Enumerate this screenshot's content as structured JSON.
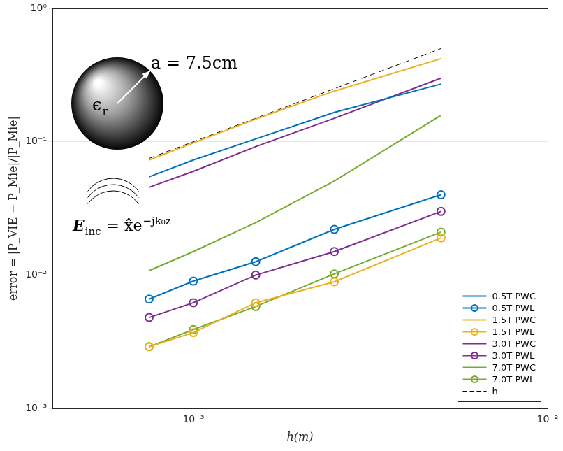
{
  "chart_data": {
    "type": "line",
    "x_label": "h(m)",
    "y_label": "error = |P_VIE − P_Mie|/|P_Mie|",
    "log": true,
    "grid": true,
    "legend": "lower right",
    "x": [
      0.00075,
      0.001,
      0.0015,
      0.0025,
      0.005
    ],
    "xlim": [
      0.0004,
      0.01
    ],
    "ylim": [
      0.001,
      1
    ],
    "xticks": [
      {
        "value": 0.001,
        "label": "10⁻³"
      },
      {
        "value": 0.01,
        "label": "10⁻²"
      }
    ],
    "yticks": [
      {
        "value": 0.001,
        "label": "10⁻³"
      },
      {
        "value": 0.01,
        "label": "10⁻²"
      },
      {
        "value": 0.1,
        "label": "10⁻¹"
      },
      {
        "value": 1,
        "label": "10⁰"
      }
    ],
    "series": [
      {
        "name": "0.5T PWC",
        "color": "#0072bd",
        "line_style": "solid",
        "marker": "none",
        "values": [
          0.0545,
          0.073,
          0.105,
          0.166,
          0.271
        ]
      },
      {
        "name": "0.5T PWL",
        "color": "#0072bd",
        "line_style": "solid",
        "marker": "circle",
        "values": [
          0.0066,
          0.009,
          0.0126,
          0.022,
          0.04
        ]
      },
      {
        "name": "1.5T PWC",
        "color": "#edb120",
        "line_style": "solid",
        "marker": "none",
        "values": [
          0.073,
          0.098,
          0.148,
          0.24,
          0.42
        ]
      },
      {
        "name": "1.5T PWL",
        "color": "#edb120",
        "line_style": "solid",
        "marker": "circle",
        "values": [
          0.0029,
          0.0037,
          0.0062,
          0.0089,
          0.019
        ]
      },
      {
        "name": "3.0T PWC",
        "color": "#7e2f8e",
        "line_style": "solid",
        "marker": "none",
        "values": [
          0.0455,
          0.06,
          0.092,
          0.15,
          0.3
        ]
      },
      {
        "name": "3.0T PWL",
        "color": "#7e2f8e",
        "line_style": "solid",
        "marker": "circle",
        "values": [
          0.0048,
          0.0062,
          0.01,
          0.015,
          0.03
        ]
      },
      {
        "name": "7.0T PWC",
        "color": "#77ac30",
        "line_style": "solid",
        "marker": "none",
        "values": [
          0.0108,
          0.015,
          0.0247,
          0.0507,
          0.158
        ]
      },
      {
        "name": "7.0T PWL",
        "color": "#77ac30",
        "line_style": "solid",
        "marker": "circle",
        "values": [
          0.0029,
          0.0039,
          0.0058,
          0.0102,
          0.021
        ]
      },
      {
        "name": "h",
        "color": "#000000",
        "line_style": "dashed",
        "marker": "none",
        "values": [
          0.075,
          0.1,
          0.15,
          0.25,
          0.5
        ]
      }
    ],
    "annotations": [
      {
        "text": "a = 7.5cm"
      },
      {
        "text": "ϵ",
        "sub": "r"
      },
      {
        "text": "E",
        "sub": "inc",
        "after": " = x̂e",
        "sup": "−jk₀z"
      }
    ]
  }
}
